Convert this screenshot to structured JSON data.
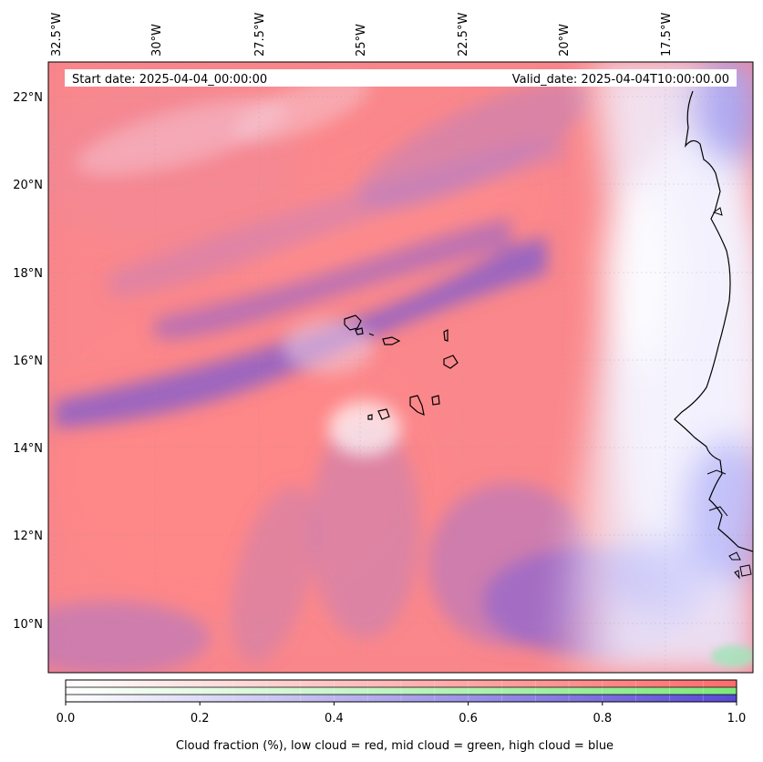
{
  "header": {
    "start_date": "Start date: 2025-04-04_00:00:00",
    "valid_date": "Valid_date: 2025-04-04T10:00:00.00"
  },
  "map": {
    "lon_ticks": [
      "32.5°W",
      "30°W",
      "27.5°W",
      "25°W",
      "22.5°W",
      "20°W",
      "17.5°W"
    ],
    "lat_ticks": [
      "22°N",
      "20°N",
      "18°N",
      "16°N",
      "14°N",
      "12°N",
      "10°N"
    ],
    "colors": {
      "low_cloud": "#ff7f7f",
      "mid_cloud": "#8ae98a",
      "high_cloud": "#6b55d8",
      "coastline": "#000000"
    }
  },
  "colorbar": {
    "ticks": [
      "0.0",
      "0.2",
      "0.4",
      "0.6",
      "0.8",
      "1.0"
    ],
    "label": "Cloud fraction (%), low cloud = red, mid cloud = green, high cloud = blue"
  }
}
